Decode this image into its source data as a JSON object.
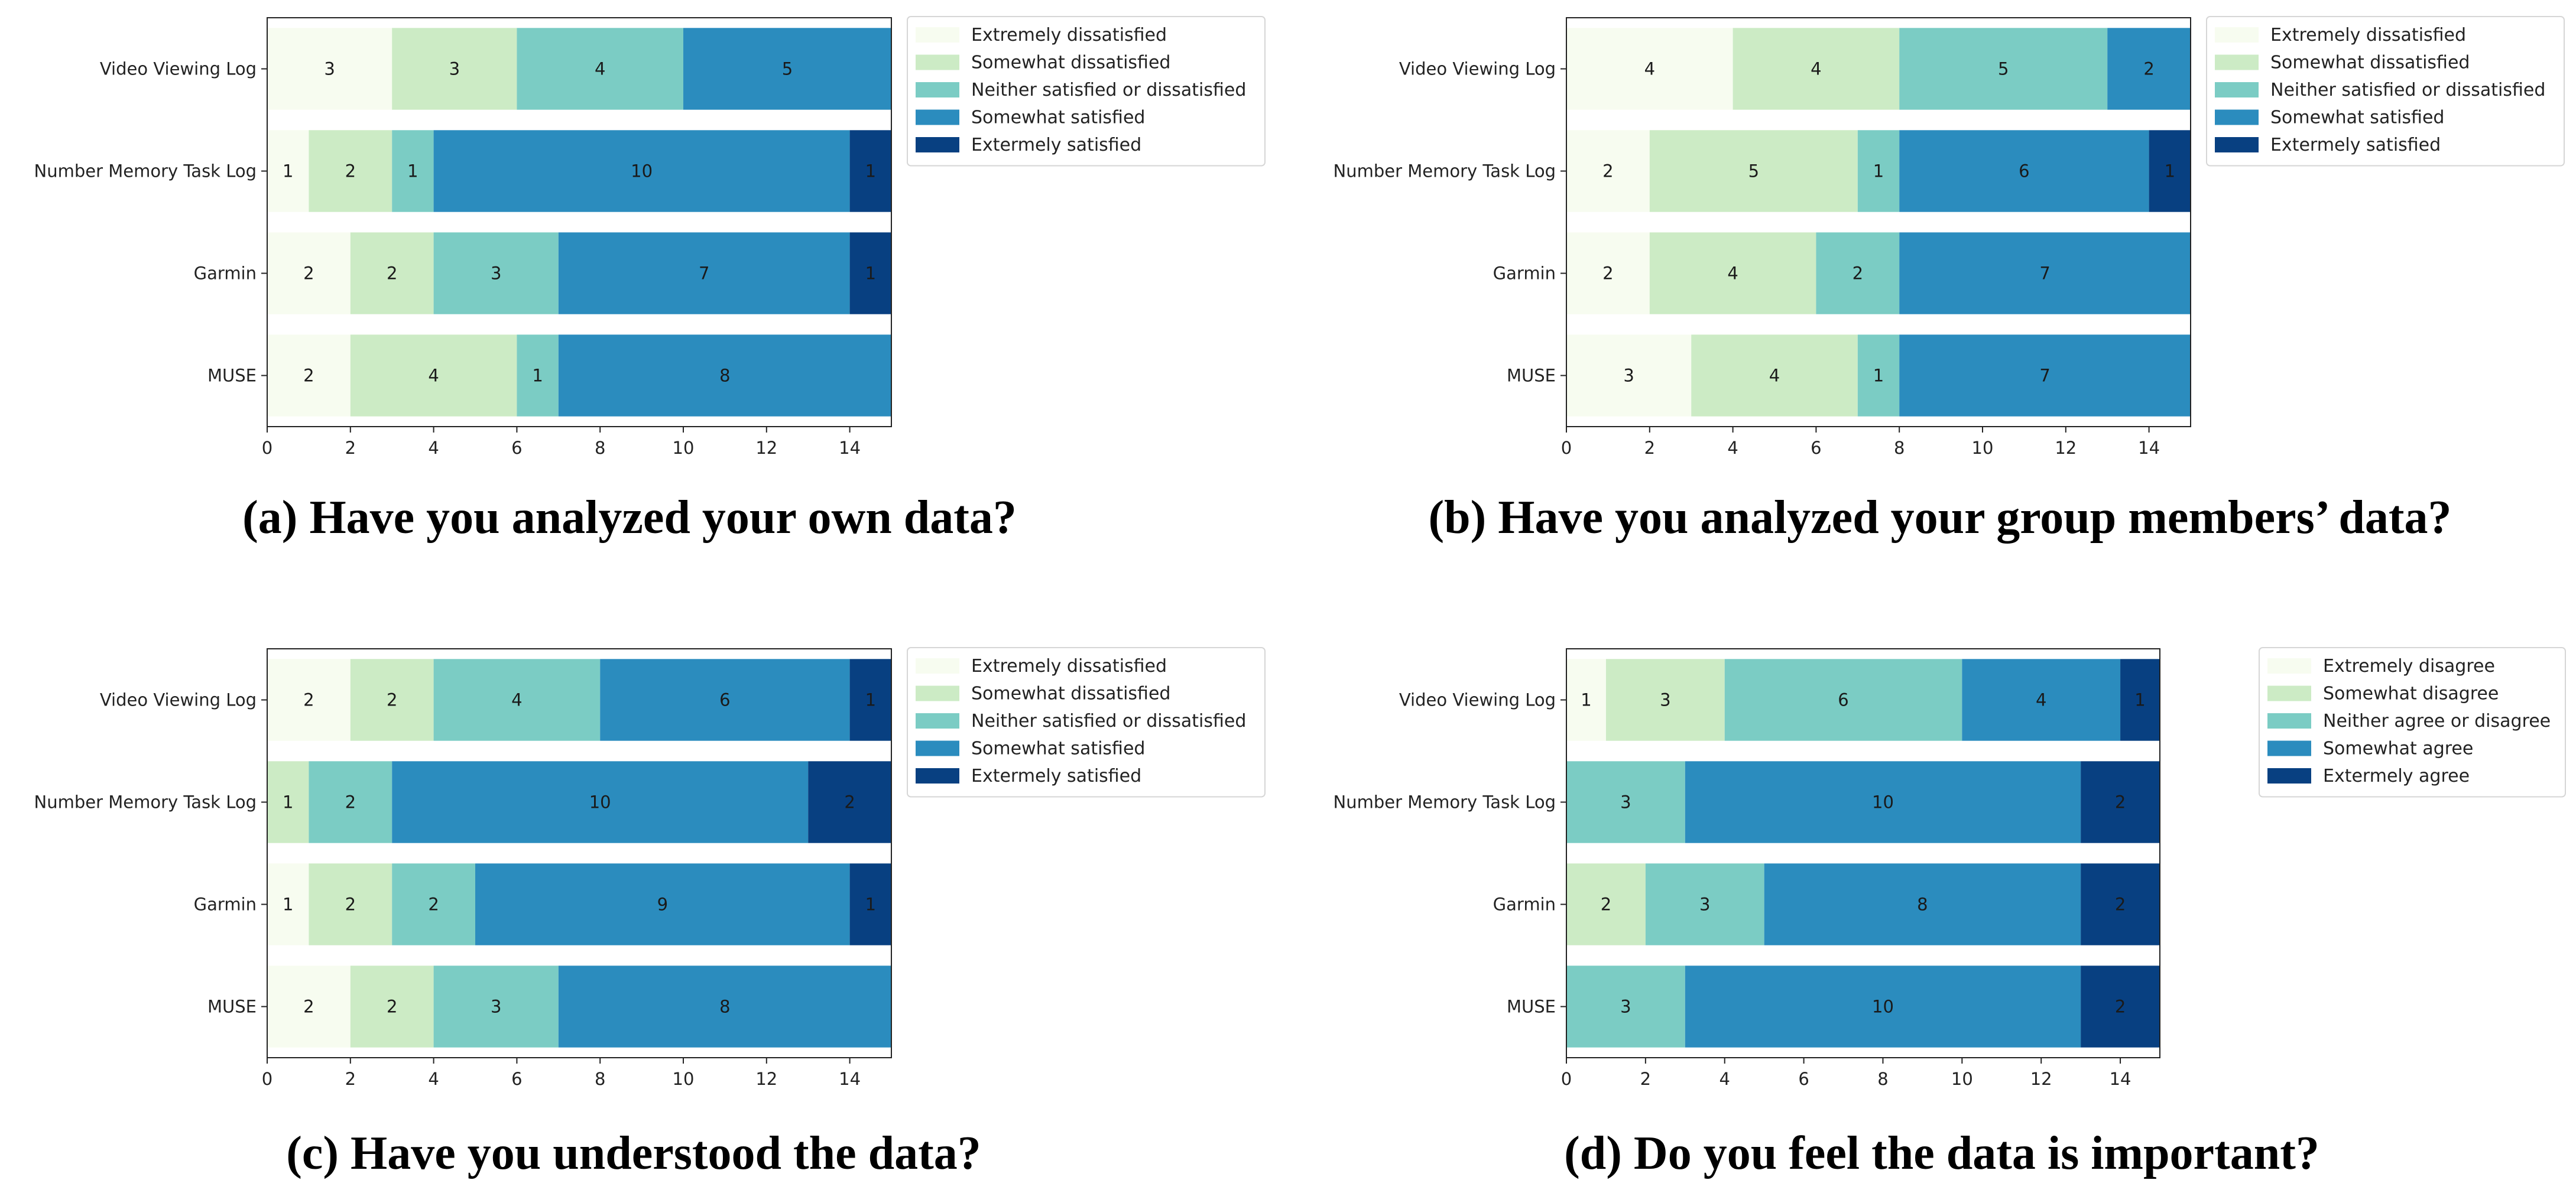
{
  "palette": [
    "#f7fcf0",
    "#ccebc5",
    "#7bccc4",
    "#2b8cbe",
    "#084081"
  ],
  "chart_data": [
    {
      "type": "bar",
      "orientation": "horizontal",
      "stacked": true,
      "title": "(a) Have you analyzed your own data?",
      "categories": [
        "Video Viewing Log",
        "Number Memory Task Log",
        "Garmin",
        "MUSE"
      ],
      "xlim": [
        0,
        15
      ],
      "xticks": [
        0,
        2,
        4,
        6,
        8,
        10,
        12,
        14
      ],
      "legend_position": "outside-right",
      "series": [
        {
          "name": "Extremely dissatisfied",
          "values": [
            3,
            1,
            2,
            2
          ]
        },
        {
          "name": "Somewhat dissatisfied",
          "values": [
            3,
            2,
            2,
            4
          ]
        },
        {
          "name": "Neither satisfied or dissatisfied",
          "values": [
            4,
            1,
            3,
            1
          ]
        },
        {
          "name": "Somewhat satisfied",
          "values": [
            5,
            10,
            7,
            8
          ]
        },
        {
          "name": "Extermely satisfied",
          "values": [
            0,
            1,
            1,
            0
          ]
        }
      ]
    },
    {
      "type": "bar",
      "orientation": "horizontal",
      "stacked": true,
      "title": "(b) Have you analyzed your group members’ data?",
      "categories": [
        "Video Viewing Log",
        "Number Memory Task Log",
        "Garmin",
        "MUSE"
      ],
      "xlim": [
        0,
        15
      ],
      "xticks": [
        0,
        2,
        4,
        6,
        8,
        10,
        12,
        14
      ],
      "legend_position": "outside-right",
      "series": [
        {
          "name": "Extremely dissatisfied",
          "values": [
            4,
            2,
            2,
            3
          ]
        },
        {
          "name": "Somewhat dissatisfied",
          "values": [
            4,
            5,
            4,
            4
          ]
        },
        {
          "name": "Neither satisfied or dissatisfied",
          "values": [
            5,
            1,
            2,
            1
          ]
        },
        {
          "name": "Somewhat satisfied",
          "values": [
            2,
            6,
            7,
            7
          ]
        },
        {
          "name": "Extermely satisfied",
          "values": [
            0,
            1,
            0,
            0
          ]
        }
      ]
    },
    {
      "type": "bar",
      "orientation": "horizontal",
      "stacked": true,
      "title": "(c) Have you understood the data?",
      "categories": [
        "Video Viewing Log",
        "Number Memory Task Log",
        "Garmin",
        "MUSE"
      ],
      "xlim": [
        0,
        15
      ],
      "xticks": [
        0,
        2,
        4,
        6,
        8,
        10,
        12,
        14
      ],
      "legend_position": "outside-right",
      "series": [
        {
          "name": "Extremely dissatisfied",
          "values": [
            2,
            0,
            1,
            2
          ]
        },
        {
          "name": "Somewhat dissatisfied",
          "values": [
            2,
            1,
            2,
            2
          ]
        },
        {
          "name": "Neither satisfied or dissatisfied",
          "values": [
            4,
            2,
            2,
            3
          ]
        },
        {
          "name": "Somewhat satisfied",
          "values": [
            6,
            10,
            9,
            8
          ]
        },
        {
          "name": "Extermely satisfied",
          "values": [
            1,
            2,
            1,
            0
          ]
        }
      ]
    },
    {
      "type": "bar",
      "orientation": "horizontal",
      "stacked": true,
      "title": "(d) Do you feel the data is important?",
      "categories": [
        "Video Viewing Log",
        "Number Memory Task Log",
        "Garmin",
        "MUSE"
      ],
      "xlim": [
        0,
        15
      ],
      "xticks": [
        0,
        2,
        4,
        6,
        8,
        10,
        12,
        14
      ],
      "legend_position": "outside-right",
      "series": [
        {
          "name": "Extremely disagree",
          "values": [
            1,
            0,
            0,
            0
          ]
        },
        {
          "name": "Somewhat disagree",
          "values": [
            3,
            0,
            2,
            0
          ]
        },
        {
          "name": "Neither agree or disagree",
          "values": [
            6,
            3,
            3,
            3
          ]
        },
        {
          "name": "Somewhat agree",
          "values": [
            4,
            10,
            8,
            10
          ]
        },
        {
          "name": "Extermely agree",
          "values": [
            1,
            2,
            2,
            2
          ]
        }
      ]
    }
  ]
}
